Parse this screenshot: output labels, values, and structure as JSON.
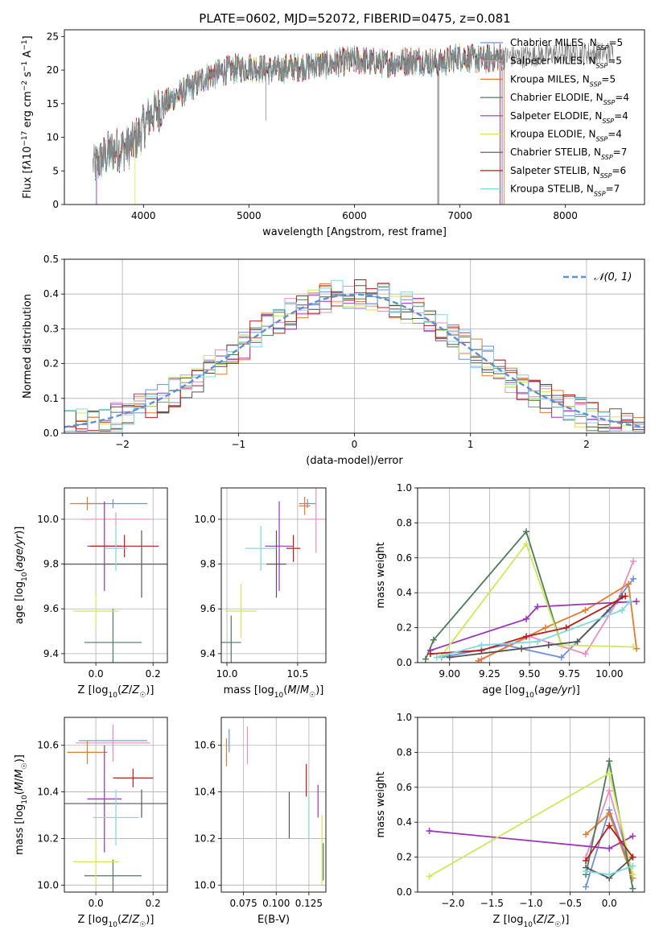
{
  "figure": {
    "title": "PLATE=0602, MJD=52072, FIBERID=0475, z=0.081"
  },
  "models": [
    {
      "name": "Chabrier MILES",
      "nssp": 5,
      "color": "#6f8fd8"
    },
    {
      "name": "Salpeter MILES",
      "nssp": 5,
      "color": "#e88fc0"
    },
    {
      "name": "Kroupa MILES",
      "nssp": 5,
      "color": "#e07b30"
    },
    {
      "name": "Chabrier ELODIE",
      "nssp": 4,
      "color": "#4e7a5a"
    },
    {
      "name": "Salpeter ELODIE",
      "nssp": 4,
      "color": "#9b35b8"
    },
    {
      "name": "Kroupa ELODIE",
      "nssp": 4,
      "color": "#cde85a"
    },
    {
      "name": "Chabrier STELIB",
      "nssp": 7,
      "color": "#555555"
    },
    {
      "name": "Salpeter STELIB",
      "nssp": 6,
      "color": "#b81c1c"
    },
    {
      "name": "Kroupa STELIB",
      "nssp": 7,
      "color": "#7fd8e0"
    }
  ],
  "chart_data": [
    {
      "id": "spectrum",
      "type": "line",
      "xlabel": "wavelength [Angstrom, rest frame]",
      "ylabel": "Flux [f_λ 10^-17 erg cm^-2 s^-1 A^-1]",
      "xlim": [
        3250,
        8750
      ],
      "ylim": [
        0,
        26
      ],
      "xticks": [
        "4000",
        "5000",
        "6000",
        "7000",
        "8000"
      ],
      "yticks": [
        "0",
        "5",
        "10",
        "15",
        "20",
        "25"
      ],
      "continuum": [
        [
          3550,
          6
        ],
        [
          3700,
          8
        ],
        [
          3850,
          8.5
        ],
        [
          3950,
          10
        ],
        [
          4050,
          13
        ],
        [
          4200,
          15
        ],
        [
          4400,
          17
        ],
        [
          4600,
          19
        ],
        [
          4800,
          20
        ],
        [
          5000,
          20.5
        ],
        [
          5200,
          20
        ],
        [
          5500,
          20.5
        ],
        [
          5800,
          21
        ],
        [
          6000,
          21.5
        ],
        [
          6300,
          21
        ],
        [
          6600,
          21.5
        ],
        [
          6800,
          21
        ],
        [
          7000,
          22
        ],
        [
          7200,
          21.5
        ],
        [
          7400,
          22
        ],
        [
          7600,
          22
        ],
        [
          7800,
          22.3
        ],
        [
          8000,
          22.5
        ],
        [
          8300,
          22.5
        ],
        [
          8450,
          22.6
        ]
      ],
      "data_range": [
        3520,
        8460
      ],
      "model_range": [
        3540,
        7420
      ],
      "grid": false,
      "legend": "top-right"
    },
    {
      "id": "residuals",
      "type": "histogram",
      "xlabel": "(data-model)/error",
      "ylabel": "Normed distribution",
      "xlim": [
        -2.5,
        2.5
      ],
      "ylim": [
        0,
        0.5
      ],
      "xticks": [
        "−2",
        "−1",
        "0",
        "1",
        "2"
      ],
      "yticks": [
        "0.0",
        "0.1",
        "0.2",
        "0.3",
        "0.4",
        "0.5"
      ],
      "bin_width": 0.1,
      "reference": {
        "label": "𝒩(0, 1)",
        "mean": 0,
        "sigma": 1
      },
      "grid": true,
      "legend": "top-right"
    },
    {
      "id": "age_vs_Z",
      "type": "errorbar",
      "xlabel": "Z [log10(Z/Z☉)]",
      "ylabel": "age  [log10(age/yr)]",
      "xlim": [
        -0.11,
        0.25
      ],
      "ylim": [
        9.36,
        10.14
      ],
      "xticks": [
        "0.0",
        "0.2"
      ],
      "yticks": [
        "9.4",
        "9.6",
        "9.8",
        "10.0"
      ],
      "points": [
        {
          "x": 0.06,
          "y": 10.07,
          "xerr": 0.12,
          "yerr": 0.02,
          "model": 0
        },
        {
          "x": 0.07,
          "y": 10.0,
          "xerr": 0.12,
          "yerr": 0.03,
          "model": 1
        },
        {
          "x": -0.03,
          "y": 10.07,
          "xerr": 0.06,
          "yerr": 0.03,
          "model": 2
        },
        {
          "x": 0.06,
          "y": 9.45,
          "xerr": 0.1,
          "yerr": 0.15,
          "model": 3
        },
        {
          "x": 0.03,
          "y": 9.88,
          "xerr": 0.06,
          "yerr": 0.2,
          "model": 4
        },
        {
          "x": 0.0,
          "y": 9.59,
          "xerr": 0.08,
          "yerr": 0.07,
          "model": 5
        },
        {
          "x": 0.16,
          "y": 9.8,
          "xerr": 0.28,
          "yerr": 0.15,
          "model": 6
        },
        {
          "x": 0.1,
          "y": 9.88,
          "xerr": 0.12,
          "yerr": 0.05,
          "model": 7
        },
        {
          "x": 0.07,
          "y": 9.87,
          "xerr": 0.04,
          "yerr": 0.1,
          "model": 8
        }
      ],
      "grid": true
    },
    {
      "id": "age_vs_mass",
      "type": "errorbar",
      "xlabel": "mass [log10(M/M☉)]",
      "ylabel": "",
      "xlim": [
        9.96,
        10.7
      ],
      "ylim": [
        9.36,
        10.14
      ],
      "xticks": [
        "10.0",
        "10.5"
      ],
      "yticks": [
        "9.4",
        "9.6",
        "9.8",
        "10.0"
      ],
      "points": [
        {
          "x": 10.57,
          "y": 10.07,
          "xerr": 0.06,
          "yerr": 0.02,
          "model": 0
        },
        {
          "x": 10.63,
          "y": 10.0,
          "xerr": 0.08,
          "yerr": 0.15,
          "model": 1
        },
        {
          "x": 10.55,
          "y": 10.06,
          "xerr": 0.04,
          "yerr": 0.04,
          "model": 2
        },
        {
          "x": 10.03,
          "y": 9.45,
          "xerr": 0.07,
          "yerr": 0.12,
          "model": 3
        },
        {
          "x": 10.37,
          "y": 9.88,
          "xerr": 0.1,
          "yerr": 0.2,
          "model": 4
        },
        {
          "x": 10.1,
          "y": 9.59,
          "xerr": 0.11,
          "yerr": 0.12,
          "model": 5
        },
        {
          "x": 10.35,
          "y": 9.8,
          "xerr": 0.07,
          "yerr": 0.15,
          "model": 6
        },
        {
          "x": 10.47,
          "y": 9.87,
          "xerr": 0.05,
          "yerr": 0.06,
          "model": 7
        },
        {
          "x": 10.24,
          "y": 9.87,
          "xerr": 0.11,
          "yerr": 0.1,
          "model": 8
        }
      ],
      "grid": true
    },
    {
      "id": "weight_vs_age",
      "type": "line",
      "xlabel": "age  [log10(age/yr)]",
      "ylabel": "mass weight",
      "xlim": [
        8.8,
        10.22
      ],
      "ylim": [
        0,
        1
      ],
      "xticks": [
        "9.00",
        "9.25",
        "9.50",
        "9.75",
        "10.00"
      ],
      "yticks": [
        "0.0",
        "0.2",
        "0.4",
        "0.6",
        "0.8",
        "1.0"
      ],
      "series": [
        {
          "model": 0,
          "x": [
            8.95,
            9.35,
            9.7,
            10.0,
            10.15
          ],
          "y": [
            0.03,
            0.1,
            0.03,
            0.3,
            0.48
          ]
        },
        {
          "model": 1,
          "x": [
            9.2,
            9.5,
            9.85,
            10.05,
            10.15
          ],
          "y": [
            0.02,
            0.15,
            0.05,
            0.35,
            0.58
          ]
        },
        {
          "model": 2,
          "x": [
            9.18,
            9.6,
            9.85,
            10.12,
            10.17
          ],
          "y": [
            0.01,
            0.2,
            0.3,
            0.45,
            0.08
          ]
        },
        {
          "model": 3,
          "x": [
            8.85,
            8.9,
            9.48,
            9.7
          ],
          "y": [
            0.02,
            0.13,
            0.75,
            0.1
          ]
        },
        {
          "model": 4,
          "x": [
            8.88,
            9.48,
            9.55,
            10.17
          ],
          "y": [
            0.07,
            0.25,
            0.32,
            0.35
          ]
        },
        {
          "model": 5,
          "x": [
            8.95,
            9.48,
            9.7,
            10.15
          ],
          "y": [
            0.04,
            0.68,
            0.1,
            0.09
          ]
        },
        {
          "model": 6,
          "x": [
            9.0,
            9.45,
            9.62,
            9.8,
            10.08
          ],
          "y": [
            0.03,
            0.08,
            0.1,
            0.12,
            0.38
          ]
        },
        {
          "model": 7,
          "x": [
            8.88,
            9.2,
            9.48,
            9.73,
            10.1
          ],
          "y": [
            0.05,
            0.07,
            0.15,
            0.2,
            0.38
          ]
        },
        {
          "model": 8,
          "x": [
            8.92,
            9.2,
            9.55,
            10.08,
            10.13
          ],
          "y": [
            0.03,
            0.1,
            0.12,
            0.3,
            0.35
          ]
        }
      ],
      "grid": true
    },
    {
      "id": "mass_vs_Z",
      "type": "errorbar",
      "xlabel": "Z [log10(Z/Z☉)]",
      "ylabel": "mass [log10(M/M☉)]",
      "xlim": [
        -0.11,
        0.25
      ],
      "ylim": [
        9.97,
        10.72
      ],
      "xticks": [
        "0.0",
        "0.2"
      ],
      "yticks": [
        "10.0",
        "10.2",
        "10.4",
        "10.6"
      ],
      "points": [
        {
          "x": 0.06,
          "y": 10.62,
          "xerr": 0.12,
          "yerr": 0.05,
          "model": 0
        },
        {
          "x": 0.06,
          "y": 10.61,
          "xerr": 0.13,
          "yerr": 0.08,
          "model": 1
        },
        {
          "x": -0.03,
          "y": 10.57,
          "xerr": 0.07,
          "yerr": 0.05,
          "model": 2
        },
        {
          "x": 0.06,
          "y": 10.04,
          "xerr": 0.1,
          "yerr": 0.07,
          "model": 3
        },
        {
          "x": 0.03,
          "y": 10.37,
          "xerr": 0.06,
          "yerr": 0.23,
          "model": 4
        },
        {
          "x": 0.0,
          "y": 10.1,
          "xerr": 0.08,
          "yerr": 0.1,
          "model": 5
        },
        {
          "x": 0.16,
          "y": 10.35,
          "xerr": 0.28,
          "yerr": 0.06,
          "model": 6
        },
        {
          "x": 0.13,
          "y": 10.46,
          "xerr": 0.07,
          "yerr": 0.04,
          "model": 7
        },
        {
          "x": 0.07,
          "y": 10.29,
          "xerr": 0.08,
          "yerr": 0.12,
          "model": 8
        }
      ],
      "grid": true
    },
    {
      "id": "mass_vs_ebv",
      "type": "errorbar",
      "xlabel": "E(B-V)",
      "ylabel": "",
      "xlim": [
        0.058,
        0.138
      ],
      "ylim": [
        9.97,
        10.72
      ],
      "xticks": [
        "0.075",
        "0.100",
        "0.125"
      ],
      "yticks": [
        "10.0",
        "10.2",
        "10.4",
        "10.6"
      ],
      "points": [
        {
          "x": 0.064,
          "y": 10.62,
          "xerr": 0,
          "yerr": 0.05,
          "model": 0
        },
        {
          "x": 0.078,
          "y": 10.6,
          "xerr": 0,
          "yerr": 0.08,
          "model": 1
        },
        {
          "x": 0.062,
          "y": 10.57,
          "xerr": 0,
          "yerr": 0.06,
          "model": 2
        },
        {
          "x": 0.136,
          "y": 10.1,
          "xerr": 0,
          "yerr": 0.08,
          "model": 3
        },
        {
          "x": 0.132,
          "y": 10.36,
          "xerr": 0,
          "yerr": 0.07,
          "model": 4
        },
        {
          "x": 0.135,
          "y": 10.15,
          "xerr": 0,
          "yerr": 0.15,
          "model": 5
        },
        {
          "x": 0.11,
          "y": 10.3,
          "xerr": 0,
          "yerr": 0.1,
          "model": 6
        },
        {
          "x": 0.123,
          "y": 10.45,
          "xerr": 0,
          "yerr": 0.07,
          "model": 7
        },
        {
          "x": 0.125,
          "y": 10.29,
          "xerr": 0,
          "yerr": 0.1,
          "model": 8
        }
      ],
      "grid": true
    },
    {
      "id": "weight_vs_Z",
      "type": "line",
      "xlabel": "Z [log10(Z/Z☉)]",
      "ylabel": "mass weight",
      "xlim": [
        -2.45,
        0.45
      ],
      "ylim": [
        0,
        1
      ],
      "xticks": [
        "−2.0",
        "−1.5",
        "−1.0",
        "−0.5",
        "0.0"
      ],
      "yticks": [
        "0.0",
        "0.2",
        "0.4",
        "0.6",
        "0.8",
        "1.0"
      ],
      "series": [
        {
          "model": 0,
          "x": [
            -0.3,
            0.0,
            0.3
          ],
          "y": [
            0.03,
            0.47,
            0.1
          ]
        },
        {
          "model": 1,
          "x": [
            -0.3,
            0.0,
            0.3
          ],
          "y": [
            0.2,
            0.58,
            0.1
          ]
        },
        {
          "model": 2,
          "x": [
            -0.3,
            0.0,
            0.3
          ],
          "y": [
            0.33,
            0.45,
            0.08
          ]
        },
        {
          "model": 3,
          "x": [
            -0.3,
            0.0,
            0.3
          ],
          "y": [
            0.1,
            0.75,
            0.02
          ]
        },
        {
          "model": 4,
          "x": [
            -2.3,
            0.0,
            0.3
          ],
          "y": [
            0.35,
            0.25,
            0.32
          ]
        },
        {
          "model": 5,
          "x": [
            -2.3,
            0.0,
            0.3
          ],
          "y": [
            0.09,
            0.68,
            0.1
          ]
        },
        {
          "model": 6,
          "x": [
            -0.3,
            0.0,
            0.3
          ],
          "y": [
            0.14,
            0.08,
            0.2
          ]
        },
        {
          "model": 7,
          "x": [
            -0.3,
            0.0,
            0.3
          ],
          "y": [
            0.18,
            0.38,
            0.2
          ]
        },
        {
          "model": 8,
          "x": [
            -0.3,
            0.0,
            0.3
          ],
          "y": [
            0.12,
            0.1,
            0.15
          ]
        }
      ],
      "grid": true
    }
  ]
}
